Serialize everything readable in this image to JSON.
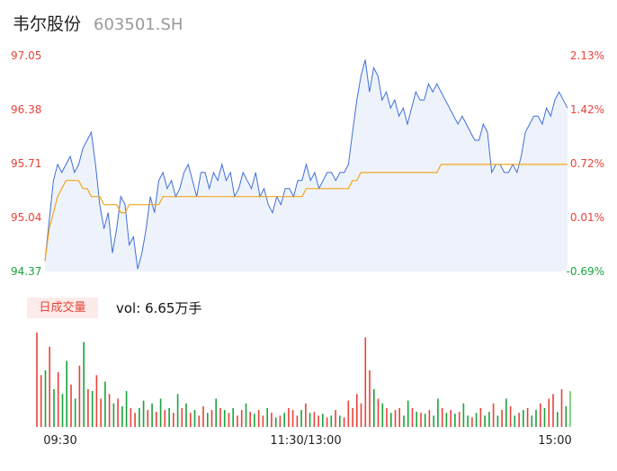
{
  "header": {
    "name": "韦尔股份",
    "code": "603501.SH"
  },
  "volume_panel": {
    "badge": "日成交量",
    "vol_label": "vol:",
    "vol_value": "6.65万手"
  },
  "colors": {
    "up": "#e8433a",
    "down": "#1aa33c",
    "neutral": "#808080",
    "price_line": "#3f6fd8",
    "avg_line": "#f2a51e",
    "area_fill": "#eef3fb"
  },
  "chart_data": {
    "type": "line",
    "title": "",
    "prev_close": 95.0,
    "y_left_ticks": [
      "97.05",
      "96.38",
      "95.71",
      "95.04",
      "94.37"
    ],
    "y_right_ticks": [
      "2.13%",
      "1.42%",
      "0.72%",
      "0.01%",
      "-0.69%"
    ],
    "ylim": [
      94.37,
      97.05
    ],
    "x_ticks": [
      "09:30",
      "11:30/13:00",
      "15:00"
    ],
    "price": [
      94.5,
      95.0,
      95.5,
      95.7,
      95.6,
      95.7,
      95.8,
      95.6,
      95.7,
      95.9,
      96.0,
      96.1,
      95.7,
      95.2,
      94.9,
      95.1,
      94.6,
      94.9,
      95.3,
      95.2,
      94.7,
      94.8,
      94.4,
      94.6,
      94.9,
      95.3,
      95.1,
      95.5,
      95.6,
      95.4,
      95.5,
      95.3,
      95.4,
      95.6,
      95.7,
      95.5,
      95.3,
      95.6,
      95.6,
      95.4,
      95.6,
      95.5,
      95.7,
      95.5,
      95.6,
      95.3,
      95.4,
      95.6,
      95.5,
      95.4,
      95.6,
      95.3,
      95.4,
      95.2,
      95.1,
      95.3,
      95.2,
      95.4,
      95.4,
      95.3,
      95.5,
      95.5,
      95.7,
      95.5,
      95.6,
      95.4,
      95.5,
      95.6,
      95.6,
      95.5,
      95.6,
      95.6,
      95.7,
      96.1,
      96.5,
      96.8,
      97.0,
      96.6,
      96.9,
      96.8,
      96.5,
      96.6,
      96.4,
      96.5,
      96.3,
      96.4,
      96.2,
      96.4,
      96.6,
      96.5,
      96.5,
      96.7,
      96.6,
      96.7,
      96.6,
      96.5,
      96.4,
      96.3,
      96.2,
      96.3,
      96.2,
      96.1,
      96.0,
      96.0,
      96.2,
      96.1,
      95.6,
      95.7,
      95.7,
      95.6,
      95.6,
      95.7,
      95.6,
      95.8,
      96.1,
      96.2,
      96.3,
      96.3,
      96.2,
      96.4,
      96.3,
      96.5,
      96.6,
      96.5,
      96.4
    ],
    "avg": [
      94.5,
      94.9,
      95.1,
      95.3,
      95.4,
      95.5,
      95.5,
      95.5,
      95.5,
      95.4,
      95.4,
      95.3,
      95.3,
      95.3,
      95.2,
      95.2,
      95.2,
      95.2,
      95.1,
      95.1,
      95.2,
      95.2,
      95.2,
      95.2,
      95.2,
      95.2,
      95.2,
      95.2,
      95.3,
      95.3,
      95.3,
      95.3,
      95.3,
      95.3,
      95.3,
      95.3,
      95.3,
      95.3,
      95.3,
      95.3,
      95.3,
      95.3,
      95.3,
      95.3,
      95.3,
      95.3,
      95.3,
      95.3,
      95.3,
      95.3,
      95.3,
      95.3,
      95.3,
      95.3,
      95.3,
      95.3,
      95.3,
      95.3,
      95.3,
      95.3,
      95.3,
      95.3,
      95.4,
      95.4,
      95.4,
      95.4,
      95.4,
      95.4,
      95.4,
      95.4,
      95.4,
      95.4,
      95.4,
      95.5,
      95.5,
      95.6,
      95.6,
      95.6,
      95.6,
      95.6,
      95.6,
      95.6,
      95.6,
      95.6,
      95.6,
      95.6,
      95.6,
      95.6,
      95.6,
      95.6,
      95.6,
      95.6,
      95.6,
      95.6,
      95.7,
      95.7,
      95.7,
      95.7,
      95.7,
      95.7,
      95.7,
      95.7,
      95.7,
      95.7,
      95.7,
      95.7,
      95.7,
      95.7,
      95.7,
      95.7,
      95.7,
      95.7,
      95.7,
      95.7,
      95.7,
      95.7,
      95.7,
      95.7,
      95.7,
      95.7,
      95.7,
      95.7,
      95.7,
      95.7,
      95.7
    ],
    "volume": {
      "values": [
        100,
        55,
        60,
        85,
        40,
        58,
        35,
        70,
        45,
        30,
        65,
        90,
        40,
        38,
        55,
        30,
        48,
        35,
        25,
        30,
        22,
        38,
        20,
        15,
        20,
        28,
        18,
        25,
        16,
        30,
        18,
        20,
        15,
        35,
        20,
        25,
        15,
        18,
        12,
        22,
        15,
        18,
        30,
        20,
        18,
        15,
        20,
        12,
        18,
        25,
        16,
        14,
        18,
        12,
        20,
        15,
        10,
        12,
        15,
        20,
        18,
        12,
        18,
        25,
        15,
        16,
        12,
        14,
        10,
        12,
        18,
        12,
        10,
        28,
        20,
        35,
        25,
        95,
        60,
        40,
        30,
        25,
        20,
        15,
        18,
        20,
        12,
        28,
        20,
        16,
        15,
        14,
        18,
        12,
        30,
        20,
        15,
        18,
        14,
        16,
        25,
        12,
        10,
        15,
        20,
        12,
        16,
        25,
        12,
        18,
        30,
        22,
        12,
        15,
        18,
        20,
        12,
        18,
        25,
        20,
        30,
        35,
        16,
        40,
        22,
        38
      ],
      "directions": [
        "up",
        "up",
        "down",
        "up",
        "down",
        "up",
        "down",
        "down",
        "up",
        "down",
        "up",
        "down",
        "up",
        "down",
        "up",
        "up",
        "down",
        "up",
        "down",
        "up",
        "down",
        "down",
        "up",
        "up",
        "down",
        "down",
        "up",
        "down",
        "up",
        "down",
        "up",
        "down",
        "up",
        "down",
        "up",
        "down",
        "up",
        "down",
        "up",
        "up",
        "down",
        "up",
        "down",
        "up",
        "down",
        "up",
        "down",
        "up",
        "up",
        "down",
        "up",
        "down",
        "up",
        "up",
        "down",
        "up",
        "down",
        "up",
        "down",
        "up",
        "up",
        "up",
        "down",
        "up",
        "down",
        "up",
        "up",
        "down",
        "up",
        "down",
        "up",
        "down",
        "up",
        "up",
        "up",
        "up",
        "up",
        "up",
        "up",
        "down",
        "up",
        "down",
        "up",
        "down",
        "up",
        "up",
        "down",
        "down",
        "up",
        "down",
        "up",
        "down",
        "up",
        "down",
        "down",
        "up",
        "down",
        "up",
        "down",
        "up",
        "down",
        "down",
        "up",
        "down",
        "up",
        "down",
        "down",
        "up",
        "down",
        "up",
        "down",
        "up",
        "down",
        "up",
        "down",
        "up",
        "down",
        "down",
        "up",
        "down",
        "up",
        "up",
        "down",
        "up",
        "down",
        "neutral"
      ]
    }
  }
}
